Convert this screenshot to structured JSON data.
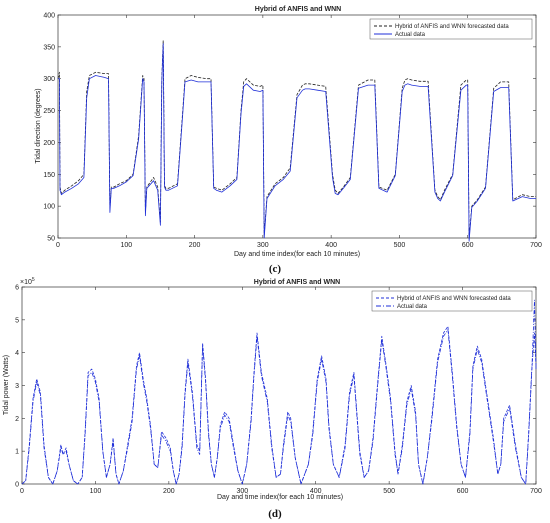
{
  "chart_data": [
    {
      "type": "line",
      "title": "Hybrid of ANFIS and WNN",
      "xlabel": "Day and time index(for each 10 minutes)",
      "ylabel": "Tidal direction (degrees)",
      "panel_label": "(c)",
      "xlim": [
        0,
        700
      ],
      "ylim": [
        50,
        400
      ],
      "xticks": [
        "0",
        "100",
        "200",
        "300",
        "400",
        "500",
        "600",
        "700"
      ],
      "yticks": [
        "50",
        "100",
        "150",
        "200",
        "250",
        "300",
        "350",
        "400"
      ],
      "legend_position": "top-right",
      "grid": false,
      "series": [
        {
          "name": "Hybrid of ANFIS and WNN forecasted data",
          "color": "#222222",
          "style": "dashed",
          "x": [
            0,
            2,
            3,
            5,
            10,
            20,
            30,
            38,
            42,
            46,
            55,
            68,
            74,
            76,
            78,
            82,
            90,
            100,
            110,
            118,
            124,
            126,
            128,
            130,
            140,
            146,
            150,
            152,
            154,
            156,
            158,
            162,
            175,
            182,
            186,
            195,
            205,
            218,
            224,
            228,
            232,
            240,
            252,
            262,
            268,
            272,
            276,
            286,
            296,
            300,
            302,
            306,
            318,
            330,
            340,
            350,
            358,
            362,
            368,
            380,
            392,
            402,
            406,
            410,
            418,
            428,
            440,
            454,
            460,
            464,
            470,
            482,
            494,
            504,
            508,
            512,
            518,
            530,
            542,
            552,
            556,
            560,
            566,
            578,
            590,
            598,
            600,
            602,
            606,
            614,
            626,
            638,
            648,
            654,
            660,
            666,
            680,
            692,
            700
          ],
          "y": [
            300,
            310,
            130,
            120,
            125,
            132,
            140,
            150,
            280,
            305,
            310,
            308,
            308,
            95,
            130,
            130,
            135,
            140,
            150,
            210,
            305,
            300,
            90,
            130,
            145,
            130,
            75,
            300,
            360,
            132,
            128,
            128,
            135,
            240,
            300,
            305,
            302,
            300,
            300,
            130,
            128,
            125,
            135,
            145,
            250,
            295,
            300,
            290,
            288,
            290,
            55,
            115,
            135,
            145,
            160,
            275,
            290,
            292,
            292,
            290,
            288,
            150,
            125,
            120,
            130,
            145,
            290,
            298,
            298,
            298,
            130,
            125,
            150,
            285,
            298,
            300,
            298,
            296,
            296,
            125,
            115,
            110,
            125,
            150,
            290,
            298,
            298,
            50,
            100,
            110,
            130,
            285,
            295,
            295,
            295,
            110,
            118,
            115,
            115
          ]
        },
        {
          "name": "Actual data",
          "color": "#1f2fd8",
          "style": "solid",
          "x": [
            0,
            2,
            3,
            5,
            10,
            20,
            30,
            38,
            42,
            46,
            55,
            68,
            74,
            76,
            78,
            82,
            90,
            100,
            110,
            118,
            124,
            126,
            128,
            130,
            140,
            146,
            150,
            152,
            154,
            156,
            158,
            162,
            175,
            182,
            186,
            195,
            205,
            218,
            224,
            228,
            232,
            240,
            252,
            262,
            268,
            272,
            276,
            286,
            296,
            300,
            302,
            306,
            318,
            330,
            340,
            350,
            358,
            362,
            368,
            380,
            392,
            402,
            406,
            410,
            418,
            428,
            440,
            454,
            460,
            464,
            470,
            482,
            494,
            504,
            508,
            512,
            518,
            530,
            542,
            552,
            556,
            560,
            566,
            578,
            590,
            598,
            600,
            602,
            606,
            614,
            626,
            638,
            648,
            654,
            660,
            666,
            680,
            692,
            700
          ],
          "y": [
            300,
            300,
            125,
            118,
            122,
            128,
            135,
            145,
            270,
            300,
            305,
            302,
            300,
            90,
            128,
            128,
            132,
            138,
            148,
            205,
            300,
            295,
            85,
            128,
            140,
            125,
            70,
            295,
            355,
            130,
            125,
            125,
            132,
            235,
            295,
            298,
            295,
            295,
            295,
            128,
            125,
            122,
            132,
            142,
            245,
            288,
            292,
            282,
            280,
            282,
            50,
            112,
            132,
            142,
            155,
            270,
            282,
            284,
            284,
            282,
            280,
            145,
            120,
            118,
            128,
            142,
            285,
            290,
            290,
            290,
            128,
            122,
            148,
            280,
            290,
            292,
            290,
            288,
            288,
            122,
            112,
            108,
            122,
            148,
            282,
            290,
            290,
            45,
            98,
            108,
            128,
            280,
            286,
            286,
            286,
            108,
            115,
            112,
            112
          ]
        }
      ]
    },
    {
      "type": "line",
      "title": "Hybrid of ANFIS and WNN",
      "xlabel": "Day and time index(for each 10 minutes)",
      "ylabel": "Tidal power (Watts)",
      "panel_label": "(d)",
      "y_multiplier": "×10",
      "y_exponent": "5",
      "xlim": [
        0,
        700
      ],
      "ylim": [
        0,
        6
      ],
      "xticks": [
        "0",
        "100",
        "200",
        "300",
        "400",
        "500",
        "600",
        "700"
      ],
      "yticks": [
        "0",
        "1",
        "2",
        "3",
        "4",
        "5",
        "6"
      ],
      "legend_position": "top-right",
      "grid": false,
      "series": [
        {
          "name": "Hybrid of ANFIS and WNN forecasted data",
          "color": "#1f2fd8",
          "style": "dashed",
          "x": [
            0,
            5,
            10,
            15,
            20,
            25,
            30,
            36,
            42,
            48,
            53,
            56,
            60,
            64,
            70,
            76,
            82,
            86,
            90,
            95,
            100,
            105,
            110,
            115,
            120,
            124,
            128,
            132,
            138,
            144,
            150,
            156,
            160,
            165,
            170,
            175,
            180,
            185,
            190,
            196,
            202,
            206,
            210,
            214,
            218,
            222,
            226,
            232,
            238,
            242,
            246,
            250,
            254,
            258,
            262,
            266,
            270,
            276,
            282,
            288,
            294,
            300,
            306,
            312,
            316,
            320,
            326,
            334,
            340,
            346,
            352,
            356,
            362,
            366,
            372,
            380,
            390,
            396,
            402,
            408,
            414,
            418,
            424,
            432,
            440,
            446,
            452,
            456,
            460,
            466,
            472,
            478,
            484,
            490,
            496,
            502,
            508,
            512,
            518,
            524,
            530,
            536,
            540,
            546,
            552,
            558,
            566,
            574,
            580,
            586,
            592,
            598,
            604,
            610,
            614,
            620,
            626,
            634,
            642,
            648,
            652,
            656,
            664,
            672,
            680,
            686,
            690,
            694,
            698,
            700
          ],
          "y": [
            0,
            0.1,
            1.2,
            2.6,
            3.2,
            2.8,
            1.2,
            0.2,
            0,
            0.4,
            1.2,
            0.9,
            1.1,
            0.6,
            0.1,
            0,
            0.2,
            1.6,
            3.4,
            3.5,
            3.2,
            2.6,
            1.0,
            0.2,
            0.6,
            1.4,
            0.3,
            0,
            0.4,
            1.2,
            2.0,
            3.6,
            4.0,
            3.2,
            2.6,
            1.8,
            0.6,
            0.5,
            1.6,
            1.4,
            1.1,
            0.4,
            0,
            0.3,
            1.2,
            2.8,
            3.8,
            2.8,
            1.2,
            1.0,
            4.3,
            3.2,
            1.6,
            0.6,
            0.2,
            0.8,
            1.8,
            2.2,
            2.0,
            1.2,
            0.4,
            0,
            0.6,
            2.0,
            3.4,
            4.6,
            3.4,
            2.6,
            1.2,
            0.2,
            0.3,
            1.2,
            2.2,
            2.0,
            0.8,
            0,
            0.6,
            1.6,
            3.2,
            3.9,
            3.2,
            1.8,
            0.6,
            0.2,
            1.2,
            2.8,
            3.4,
            2.2,
            1.0,
            0.2,
            0.4,
            1.4,
            3.0,
            4.5,
            3.6,
            2.6,
            1.0,
            0.3,
            1.2,
            2.5,
            3.0,
            2.2,
            0.6,
            0,
            0.8,
            2.0,
            3.8,
            4.6,
            4.8,
            3.4,
            1.8,
            0.6,
            0.2,
            1.6,
            3.6,
            4.2,
            3.8,
            2.6,
            1.4,
            0.3,
            0.6,
            2.0,
            2.4,
            1.2,
            0.2,
            0,
            1.6,
            3.4,
            4.6,
            3.6
          ]
        },
        {
          "name": "Actual data",
          "color": "#1f2fd8",
          "style": "dashdot",
          "x": [
            0,
            5,
            10,
            15,
            20,
            25,
            30,
            36,
            42,
            48,
            53,
            56,
            60,
            64,
            70,
            76,
            82,
            86,
            90,
            95,
            100,
            105,
            110,
            115,
            120,
            124,
            128,
            132,
            138,
            144,
            150,
            156,
            160,
            165,
            170,
            175,
            180,
            185,
            190,
            196,
            202,
            206,
            210,
            214,
            218,
            222,
            226,
            232,
            238,
            242,
            246,
            250,
            254,
            258,
            262,
            266,
            270,
            276,
            282,
            288,
            294,
            300,
            306,
            312,
            316,
            320,
            326,
            334,
            340,
            346,
            352,
            356,
            362,
            366,
            372,
            380,
            390,
            396,
            402,
            408,
            414,
            418,
            424,
            432,
            440,
            446,
            452,
            456,
            460,
            466,
            472,
            478,
            484,
            490,
            496,
            502,
            508,
            512,
            518,
            524,
            530,
            536,
            540,
            546,
            552,
            558,
            566,
            574,
            580,
            586,
            592,
            598,
            604,
            610,
            614,
            620,
            626,
            634,
            642,
            648,
            652,
            656,
            664,
            672,
            680,
            686,
            690,
            694,
            698,
            700
          ],
          "y": [
            0,
            0.1,
            1.1,
            2.5,
            3.1,
            2.7,
            1.1,
            0.2,
            0,
            0.4,
            1.1,
            0.9,
            1.0,
            0.6,
            0.1,
            0,
            0.2,
            1.5,
            3.3,
            3.4,
            3.1,
            2.5,
            1.0,
            0.2,
            0.6,
            1.3,
            0.3,
            0,
            0.4,
            1.1,
            1.9,
            3.5,
            3.9,
            3.1,
            2.5,
            1.7,
            0.6,
            0.5,
            1.5,
            1.3,
            1.0,
            0.4,
            0,
            0.3,
            1.1,
            2.7,
            3.7,
            2.7,
            1.1,
            0.9,
            4.2,
            3.1,
            1.5,
            0.6,
            0.2,
            0.8,
            1.7,
            2.1,
            1.9,
            1.1,
            0.4,
            0,
            0.6,
            1.9,
            3.3,
            4.5,
            3.3,
            2.5,
            1.1,
            0.2,
            0.3,
            1.1,
            2.1,
            1.9,
            0.8,
            0,
            0.6,
            1.5,
            3.1,
            3.8,
            3.1,
            1.7,
            0.6,
            0.2,
            1.1,
            2.7,
            3.3,
            2.1,
            0.9,
            0.2,
            0.4,
            1.3,
            2.9,
            4.4,
            3.5,
            2.5,
            0.9,
            0.3,
            1.1,
            2.4,
            2.9,
            2.1,
            0.6,
            0,
            0.8,
            1.9,
            3.7,
            4.5,
            4.7,
            3.3,
            1.7,
            0.6,
            0.2,
            1.5,
            3.5,
            4.1,
            3.7,
            2.5,
            1.3,
            0.3,
            0.6,
            1.9,
            2.3,
            1.1,
            0.2,
            0,
            1.5,
            3.3,
            5.6,
            3.5
          ]
        }
      ]
    }
  ]
}
